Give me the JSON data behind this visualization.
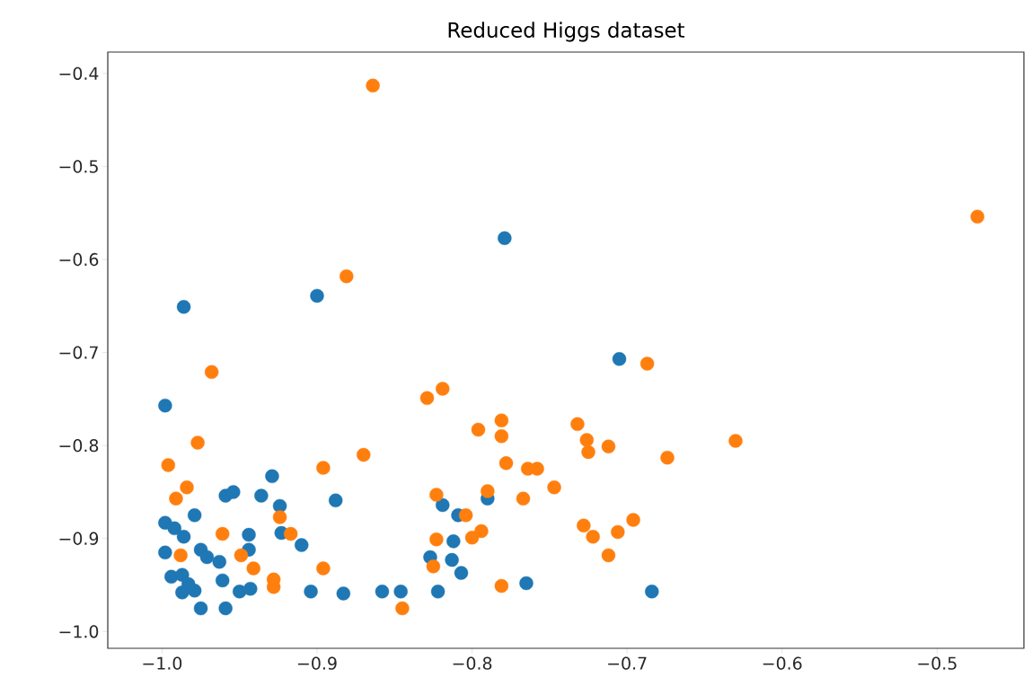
{
  "chart_data": {
    "type": "scatter",
    "title": "Reduced Higgs dataset",
    "marker": "circle",
    "xlim": [
      -1.035,
      -0.444
    ],
    "ylim": [
      -1.018,
      -0.377
    ],
    "xticks": [
      {
        "value": -1.0,
        "label": "−1.0"
      },
      {
        "value": -0.9,
        "label": "−0.9"
      },
      {
        "value": -0.8,
        "label": "−0.8"
      },
      {
        "value": -0.7,
        "label": "−0.7"
      },
      {
        "value": -0.6,
        "label": "−0.6"
      },
      {
        "value": -0.5,
        "label": "−0.5"
      }
    ],
    "yticks": [
      {
        "value": -1.0,
        "label": "−1.0"
      },
      {
        "value": -0.9,
        "label": "−0.9"
      },
      {
        "value": -0.8,
        "label": "−0.8"
      },
      {
        "value": -0.7,
        "label": "−0.7"
      },
      {
        "value": -0.6,
        "label": "−0.6"
      },
      {
        "value": -0.5,
        "label": "−0.5"
      },
      {
        "value": -0.4,
        "label": "−0.4"
      }
    ],
    "series": [
      {
        "color": "#1f77b4",
        "x": [
          -0.986,
          -0.9,
          -0.779,
          -0.705,
          -0.998,
          -0.929,
          -0.959,
          -0.954,
          -0.936,
          -0.924,
          -0.888,
          -0.979,
          -0.998,
          -0.992,
          -0.986,
          -0.944,
          -0.944,
          -0.923,
          -0.91,
          -0.998,
          -0.975,
          -0.971,
          -0.963,
          -0.994,
          -0.987,
          -0.983,
          -0.987,
          -0.979,
          -0.975,
          -0.961,
          -0.959,
          -0.95,
          -0.943,
          -0.904,
          -0.883,
          -0.858,
          -0.846,
          -0.819,
          -0.809,
          -0.812,
          -0.827,
          -0.813,
          -0.807,
          -0.822,
          -0.765,
          -0.684,
          -0.79
        ],
        "values": [
          -0.651,
          -0.639,
          -0.577,
          -0.707,
          -0.757,
          -0.833,
          -0.854,
          -0.85,
          -0.854,
          -0.865,
          -0.859,
          -0.875,
          -0.883,
          -0.889,
          -0.898,
          -0.896,
          -0.912,
          -0.894,
          -0.907,
          -0.915,
          -0.912,
          -0.92,
          -0.925,
          -0.941,
          -0.939,
          -0.949,
          -0.958,
          -0.956,
          -0.975,
          -0.945,
          -0.975,
          -0.957,
          -0.954,
          -0.957,
          -0.959,
          -0.957,
          -0.957,
          -0.864,
          -0.875,
          -0.903,
          -0.92,
          -0.923,
          -0.937,
          -0.957,
          -0.948,
          -0.957,
          -0.857
        ]
      },
      {
        "color": "#ff7f0e",
        "x": [
          -0.864,
          -0.474,
          -0.881,
          -0.968,
          -0.687,
          -0.977,
          -0.996,
          -0.984,
          -0.991,
          -0.87,
          -0.896,
          -0.924,
          -0.961,
          -0.917,
          -0.988,
          -0.949,
          -0.941,
          -0.896,
          -0.928,
          -0.928,
          -0.829,
          -0.819,
          -0.796,
          -0.781,
          -0.781,
          -0.732,
          -0.726,
          -0.725,
          -0.712,
          -0.674,
          -0.778,
          -0.764,
          -0.758,
          -0.747,
          -0.767,
          -0.79,
          -0.823,
          -0.804,
          -0.794,
          -0.8,
          -0.823,
          -0.825,
          -0.781,
          -0.728,
          -0.722,
          -0.706,
          -0.696,
          -0.712,
          -0.845,
          -0.63
        ],
        "values": [
          -0.413,
          -0.554,
          -0.618,
          -0.721,
          -0.712,
          -0.797,
          -0.821,
          -0.845,
          -0.857,
          -0.81,
          -0.824,
          -0.877,
          -0.895,
          -0.895,
          -0.918,
          -0.918,
          -0.932,
          -0.932,
          -0.944,
          -0.952,
          -0.749,
          -0.739,
          -0.783,
          -0.773,
          -0.79,
          -0.777,
          -0.794,
          -0.807,
          -0.801,
          -0.813,
          -0.819,
          -0.825,
          -0.825,
          -0.845,
          -0.857,
          -0.849,
          -0.853,
          -0.875,
          -0.892,
          -0.899,
          -0.901,
          -0.93,
          -0.951,
          -0.886,
          -0.898,
          -0.893,
          -0.88,
          -0.918,
          -0.975,
          -0.795
        ]
      }
    ]
  }
}
